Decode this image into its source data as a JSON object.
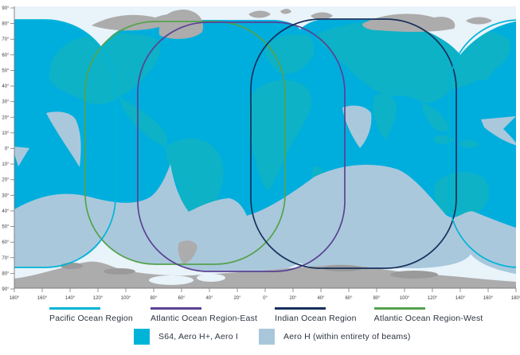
{
  "map": {
    "description": "Satellite ocean-region beam coverage world map",
    "axes": {
      "lat_labels": [
        "90°",
        "80°",
        "70°",
        "60°",
        "50°",
        "40°",
        "30°",
        "20°",
        "10°",
        "0°",
        "10°",
        "20°",
        "30°",
        "40°",
        "50°",
        "60°",
        "70°",
        "80°",
        "90°"
      ],
      "lon_labels": [
        "180°",
        "160°",
        "140°",
        "120°",
        "100°",
        "80°",
        "60°",
        "40°",
        "20°",
        "0°",
        "20°",
        "40°",
        "60°",
        "80°",
        "100°",
        "120°",
        "140°",
        "160°",
        "180°"
      ]
    }
  },
  "legend": {
    "regions": [
      {
        "id": "pacific",
        "label": "Pacific Ocean Region",
        "color": "#00b4d8"
      },
      {
        "id": "atlantic-east",
        "label": "Atlantic Ocean Region-East",
        "color": "#5a4293"
      },
      {
        "id": "indian",
        "label": "Indian Ocean Region",
        "color": "#16305c"
      },
      {
        "id": "atlantic-west",
        "label": "Atlantic Ocean Region-West",
        "color": "#54a24c"
      }
    ],
    "services": [
      {
        "id": "s64",
        "label": "S64, Aero H+, Aero I",
        "color": "#00b4d8"
      },
      {
        "id": "aero-h",
        "label": "Aero H (within entirety of beams)",
        "color": "#a9c7db"
      }
    ]
  },
  "colors": {
    "background": "#ffffff",
    "uncovered_ocean": "#e9f3fa",
    "covered_ocean": "#00aedd",
    "covered_land": "#0db2c6",
    "uncovered_land": "#acacac",
    "uncovered_land_dark": "#9a9a9a",
    "aero_h_fill": "#aac8dc",
    "axis": "#7a7a7a",
    "label_text": "#3a3a3a",
    "legend_text": "#2c3340"
  }
}
